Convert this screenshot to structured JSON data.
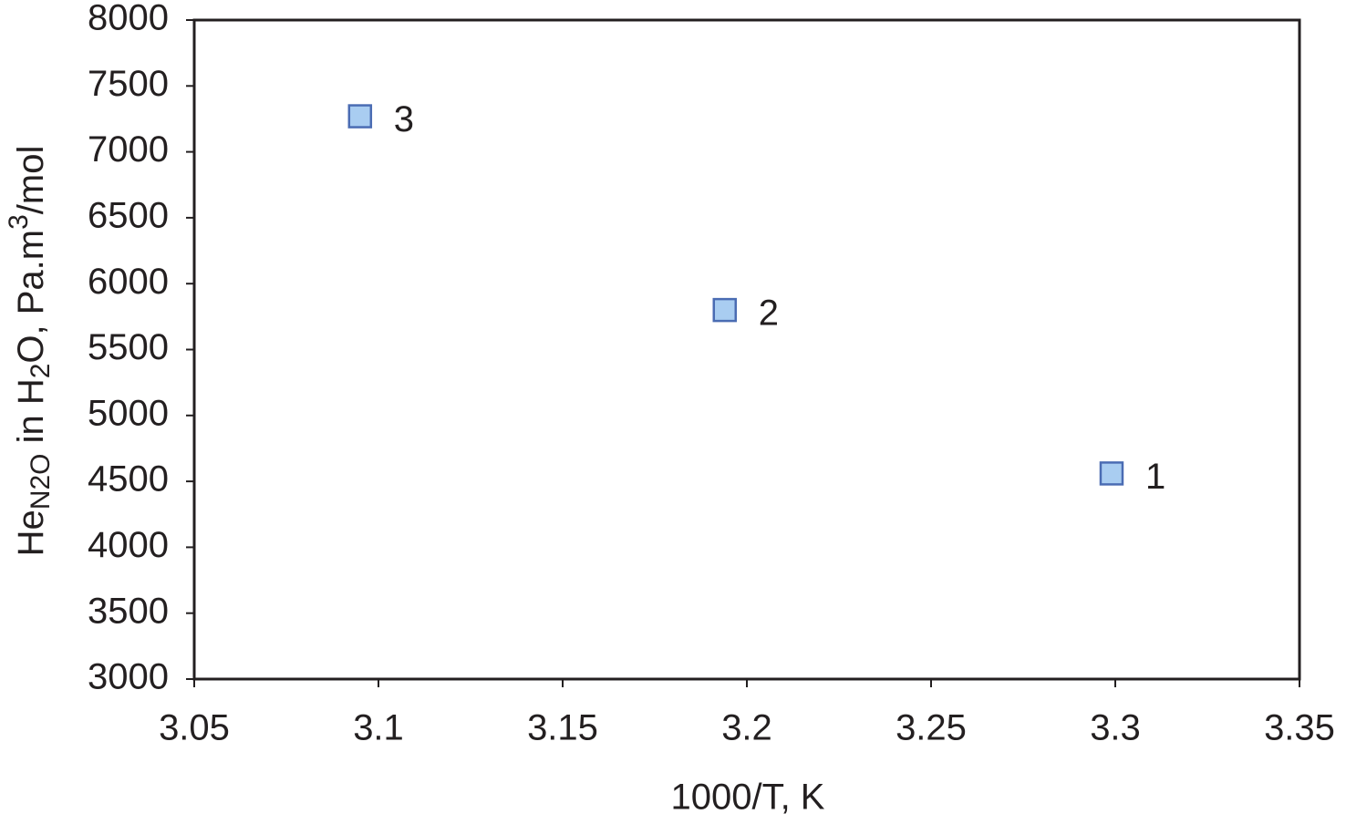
{
  "chart_data": {
    "type": "scatter",
    "xlabel": "1000/T, K",
    "ylabel": [
      "He",
      "N2O",
      " in H",
      "2",
      "O, Pa.m",
      "3",
      "/mol"
    ],
    "x": [
      3.299,
      3.194,
      3.095
    ],
    "y": [
      4560,
      5800,
      7270
    ],
    "labels": [
      "1",
      "2",
      "3"
    ],
    "color": "#a9cdf1",
    "xlim": [
      3.05,
      3.35
    ],
    "xticks": [
      3.05,
      3.1,
      3.15,
      3.2,
      3.25,
      3.3,
      3.35
    ],
    "ylim": [
      3000,
      8000
    ],
    "yticks": [
      3000,
      3500,
      4000,
      4500,
      5000,
      5500,
      6000,
      6500,
      7000,
      7500,
      8000
    ]
  }
}
